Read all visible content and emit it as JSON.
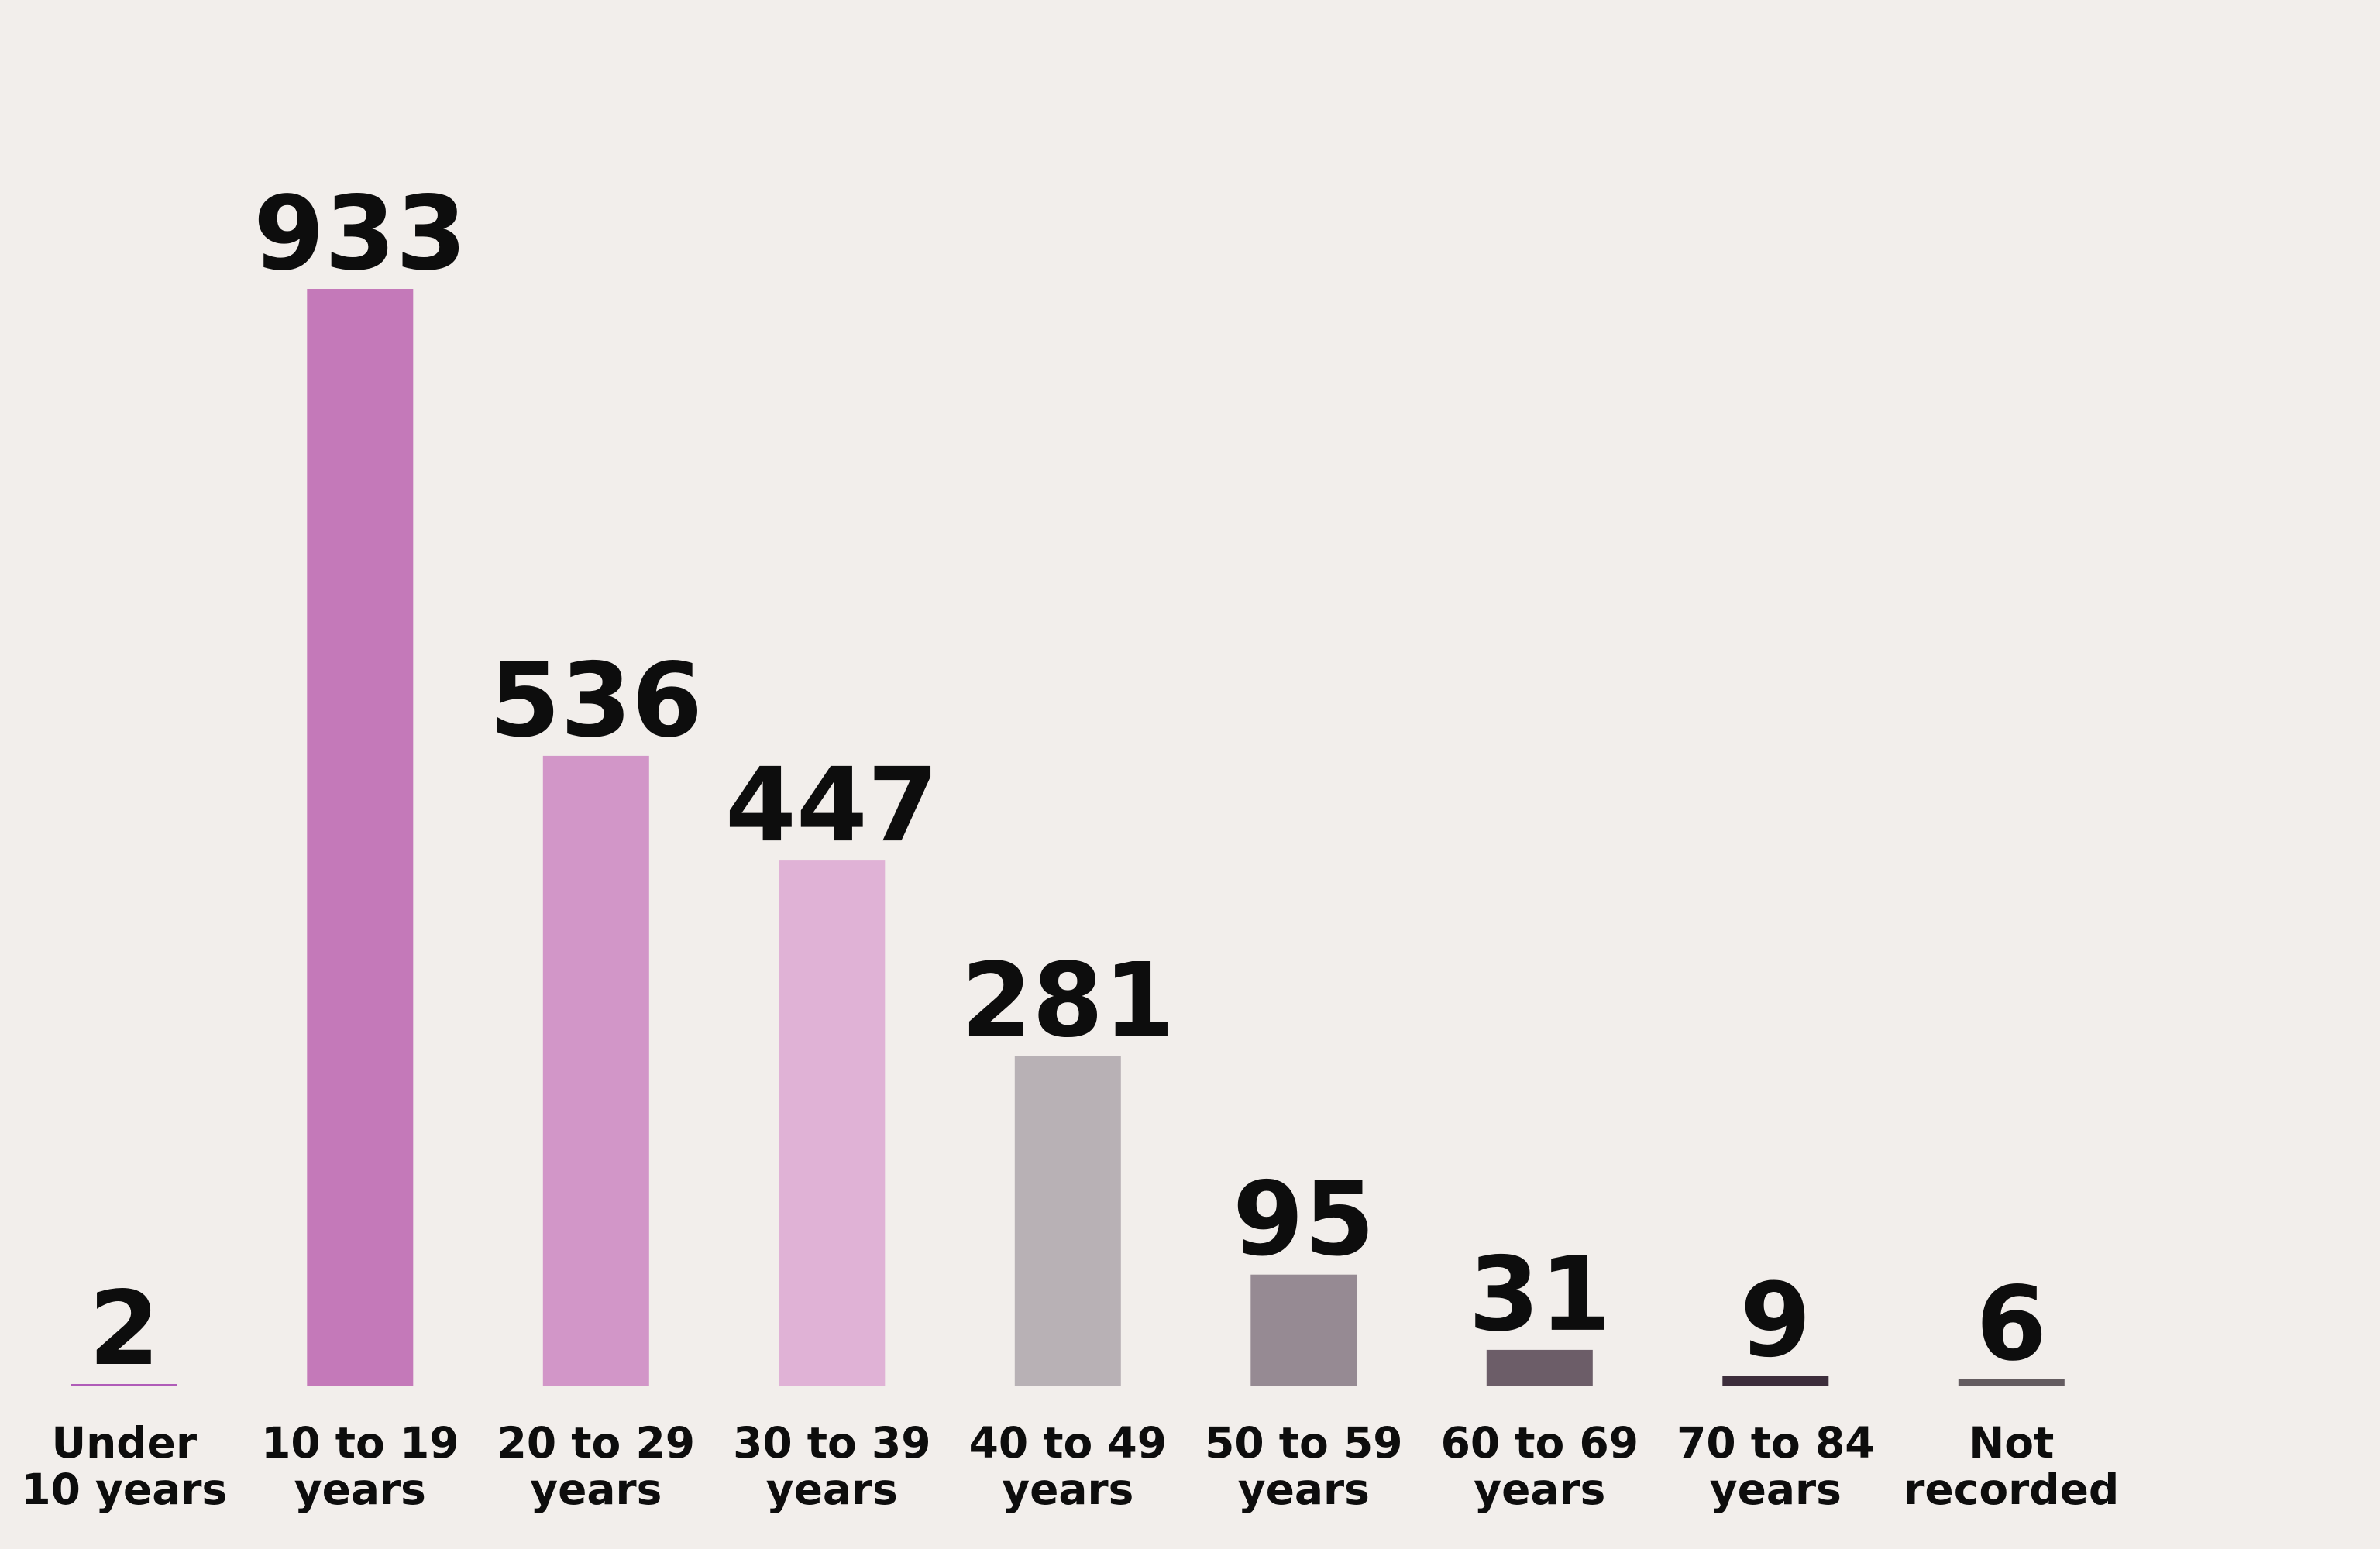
{
  "chart_data": {
    "type": "bar",
    "categories": [
      [
        "Under",
        "10 years"
      ],
      [
        "10 to 19",
        "years"
      ],
      [
        "20 to 29",
        "years"
      ],
      [
        "30 to 39",
        "years"
      ],
      [
        "40 to 49",
        "years"
      ],
      [
        "50 to 59",
        "years"
      ],
      [
        "60 to 69",
        "years"
      ],
      [
        "70 to 84",
        "years"
      ],
      [
        "Not",
        "recorded"
      ]
    ],
    "values": [
      2,
      933,
      536,
      447,
      281,
      95,
      31,
      9,
      6
    ],
    "value_labels": [
      "2",
      "933",
      "536",
      "447",
      "281",
      "95",
      "31",
      "9",
      "6"
    ],
    "colors": [
      "#b05cb8",
      "#c479b9",
      "#d296c8",
      "#e0b2d6",
      "#b8b1b5",
      "#968a93",
      "#6c5d68",
      "#3d2d3b",
      "#645c60"
    ],
    "ylim": [
      0,
      933
    ],
    "grid": false,
    "title": "",
    "xlabel": "",
    "ylabel": "",
    "background": "#f2eeeb"
  }
}
